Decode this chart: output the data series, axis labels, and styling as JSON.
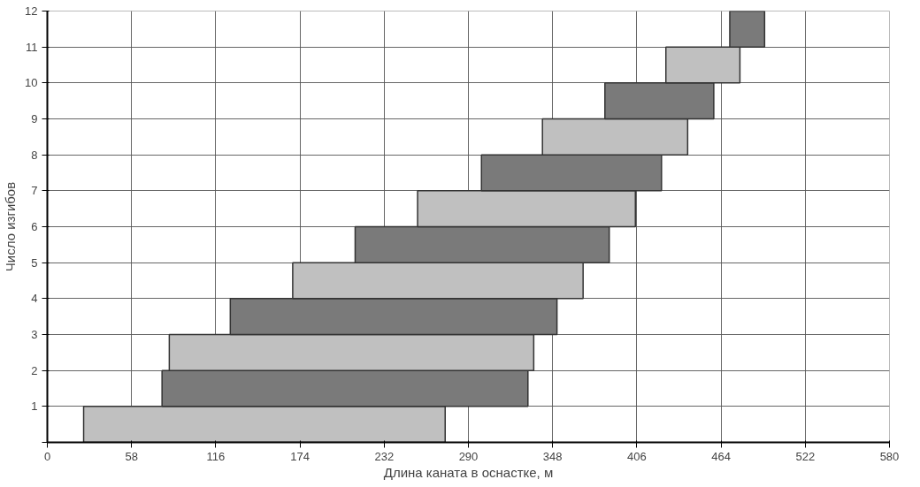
{
  "chart_data": {
    "type": "bar",
    "orientation": "horizontal",
    "xlabel": "Длина каната в оснастке, м",
    "ylabel": "Число изгибов",
    "x": [
      0.5,
      1.5,
      2.5,
      3.5,
      4.5,
      5.5,
      6.5,
      7.5,
      8.5,
      9.5,
      10.5,
      11.5
    ],
    "base": [
      25,
      79,
      84,
      126,
      169,
      212,
      255,
      299,
      341,
      384,
      426,
      470
    ],
    "values": [
      249,
      252,
      251,
      225,
      200,
      175,
      150,
      124,
      100,
      75,
      51,
      24
    ],
    "colors": [
      "#c0c0c0",
      "#7a7a7a",
      "#c0c0c0",
      "#7a7a7a",
      "#c0c0c0",
      "#7a7a7a",
      "#c0c0c0",
      "#7a7a7a",
      "#c0c0c0",
      "#7a7a7a",
      "#c0c0c0",
      "#7a7a7a"
    ],
    "xlim": [
      0,
      580
    ],
    "xticks": [
      0,
      58,
      116,
      174,
      232,
      290,
      348,
      406,
      464,
      522,
      580
    ],
    "ylim": [
      0,
      12
    ],
    "yticks": [
      {
        "value": 0,
        "label": null
      },
      1,
      2,
      3,
      4,
      5,
      6,
      7,
      8,
      9,
      10,
      11,
      12
    ],
    "grid": true
  }
}
